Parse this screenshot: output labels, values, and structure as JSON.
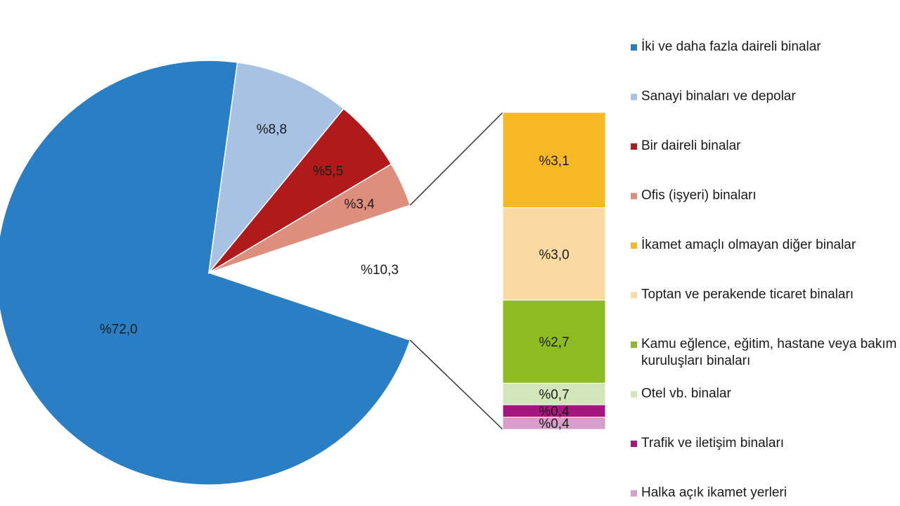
{
  "chart_data": {
    "type": "pie",
    "title": "",
    "series": [
      {
        "name": "İki ve daha fazla daireli binalar",
        "value": 72.0,
        "label": "%72,0",
        "color": "#2a7fc4"
      },
      {
        "name": "Sanayi binaları ve depolar",
        "value": 8.8,
        "label": "%8,8",
        "color": "#a8c2e4"
      },
      {
        "name": "Bir daireli binalar",
        "value": 5.5,
        "label": "%5,5",
        "color": "#b01a1a"
      },
      {
        "name": "Ofis (işyeri) binaları",
        "value": 3.4,
        "label": "%3,4",
        "color": "#dd8e7c"
      },
      {
        "name": "İkamet amaçlı olmayan diğer binalar",
        "value": 3.1,
        "label": "%3,1",
        "color": "#f6b925"
      },
      {
        "name": "Toptan ve perakende ticaret binaları",
        "value": 3.0,
        "label": "%3,0",
        "color": "#fad9a2"
      },
      {
        "name": "Kamu eğlence, eğitim, hastane veya bakım kuruluşları binaları",
        "value": 2.7,
        "label": "%2,7",
        "color": "#8cbb22"
      },
      {
        "name": "Otel vb. binalar",
        "value": 0.7,
        "label": "%0,7",
        "color": "#d3e5ba"
      },
      {
        "name": "Trafik ve iletişim binaları",
        "value": 0.4,
        "label": "%0,4",
        "color": "#a5167e"
      },
      {
        "name": "Halka açık ikamet yerleri",
        "value": 0.4,
        "label": "%0,4",
        "color": "#d79ecb"
      }
    ],
    "pie_slices": 4,
    "other_label": "%10,3",
    "other_value": 10.3,
    "legend_position": "right"
  }
}
